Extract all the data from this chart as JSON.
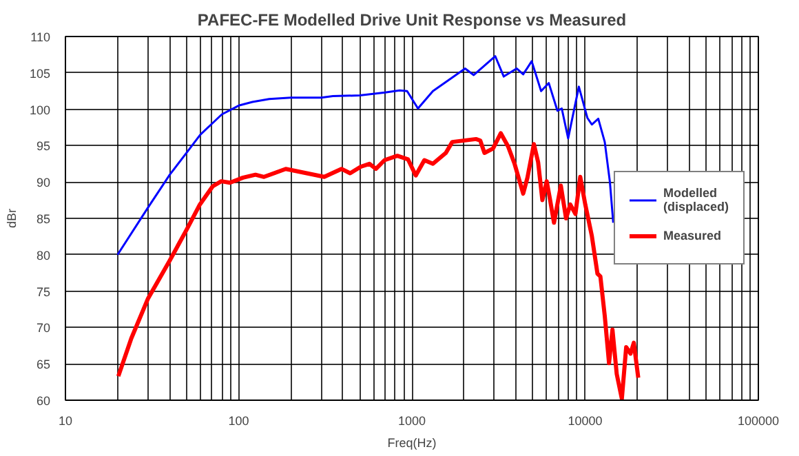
{
  "chart_data": {
    "type": "line",
    "title": "PAFEC-FE Modelled Drive Unit Response vs Measured",
    "xlabel": "Freq(Hz)",
    "ylabel": "dBr",
    "log": "x",
    "grid": true,
    "legend": "right",
    "marker": "none",
    "line_style": "solid",
    "xlim": [
      10,
      100000
    ],
    "ylim": [
      60,
      110
    ],
    "xticks": [
      10,
      {
        "value": 20,
        "label": null
      },
      {
        "value": 30,
        "label": null
      },
      {
        "value": 40,
        "label": null
      },
      {
        "value": 50,
        "label": null
      },
      {
        "value": 60,
        "label": null
      },
      {
        "value": 70,
        "label": null
      },
      {
        "value": 80,
        "label": null
      },
      {
        "value": 90,
        "label": null
      },
      100,
      {
        "value": 200,
        "label": null
      },
      {
        "value": 300,
        "label": null
      },
      {
        "value": 400,
        "label": null
      },
      {
        "value": 500,
        "label": null
      },
      {
        "value": 600,
        "label": null
      },
      {
        "value": 700,
        "label": null
      },
      {
        "value": 800,
        "label": null
      },
      {
        "value": 900,
        "label": null
      },
      1000,
      {
        "value": 2000,
        "label": null
      },
      {
        "value": 3000,
        "label": null
      },
      {
        "value": 4000,
        "label": null
      },
      {
        "value": 5000,
        "label": null
      },
      {
        "value": 6000,
        "label": null
      },
      {
        "value": 7000,
        "label": null
      },
      {
        "value": 8000,
        "label": null
      },
      {
        "value": 9000,
        "label": null
      },
      10000,
      {
        "value": 20000,
        "label": null
      },
      {
        "value": 30000,
        "label": null
      },
      {
        "value": 40000,
        "label": null
      },
      {
        "value": 50000,
        "label": null
      },
      {
        "value": 60000,
        "label": null
      },
      {
        "value": 70000,
        "label": null
      },
      {
        "value": 80000,
        "label": null
      },
      {
        "value": 90000,
        "label": null
      },
      100000
    ],
    "yticks": [
      60,
      65,
      70,
      75,
      80,
      85,
      90,
      95,
      100,
      105,
      110
    ],
    "series": [
      {
        "name": "Modelled\n(displaced)",
        "color": "#0000ff",
        "x": [
          20,
          30,
          40,
          50,
          60,
          70,
          80,
          100,
          120,
          150,
          200,
          300,
          350,
          500,
          700,
          850,
          938,
          1084,
          1322,
          2028,
          2275,
          3027,
          3390,
          4025,
          4390,
          4915,
          5570,
          6170,
          6920,
          7330,
          7980,
          9200,
          10310,
          10930,
          11910,
          12980,
          13900,
          14530
        ],
        "values": [
          80,
          86.5,
          91,
          94,
          96.5,
          98,
          99.3,
          100.5,
          101,
          101.4,
          101.6,
          101.6,
          101.8,
          101.9,
          102.3,
          102.6,
          102.5,
          100.1,
          102.5,
          105.6,
          104.7,
          107.3,
          104.5,
          105.6,
          104.8,
          106.6,
          102.5,
          103.6,
          99.8,
          100.1,
          96.0,
          103.1,
          98.8,
          97.9,
          98.7,
          95.5,
          90.0,
          84.4
        ]
      },
      {
        "name": "Measured",
        "color": "#ff0000",
        "x": [
          20.2,
          24,
          30,
          40,
          50.2,
          59.7,
          70.8,
          79.4,
          89,
          106,
          125,
          140,
          187,
          312,
          392,
          440,
          507,
          569,
          620,
          695,
          824,
          950,
          1053,
          1180,
          1322,
          1570,
          1710,
          2344,
          2480,
          2624,
          2940,
          3260,
          3590,
          3915,
          4390,
          4645,
          5060,
          5355,
          5665,
          6000,
          6250,
          6610,
          7240,
          7760,
          8210,
          8790,
          9370,
          10020,
          10930,
          11780,
          12250,
          12980,
          13740,
          14380,
          15220,
          16290,
          17260,
          18280,
          19100,
          20260
        ],
        "values": [
          63.3,
          68.5,
          74.0,
          79.2,
          83.5,
          86.9,
          89.4,
          90.1,
          89.9,
          90.6,
          91.0,
          90.7,
          91.8,
          90.7,
          91.8,
          91.2,
          92.1,
          92.5,
          91.8,
          93.0,
          93.6,
          93.1,
          90.9,
          93.0,
          92.5,
          94.0,
          95.5,
          95.9,
          95.7,
          94.0,
          94.6,
          96.7,
          94.9,
          92.5,
          88.4,
          90.6,
          95.2,
          92.7,
          87.5,
          90.1,
          87.8,
          84.4,
          89.5,
          85.0,
          86.9,
          85.6,
          90.7,
          86.9,
          82.6,
          77.4,
          77.0,
          71.6,
          65.1,
          69.7,
          63.6,
          60.2,
          67.3,
          66.4,
          67.9,
          63.1
        ]
      }
    ]
  }
}
